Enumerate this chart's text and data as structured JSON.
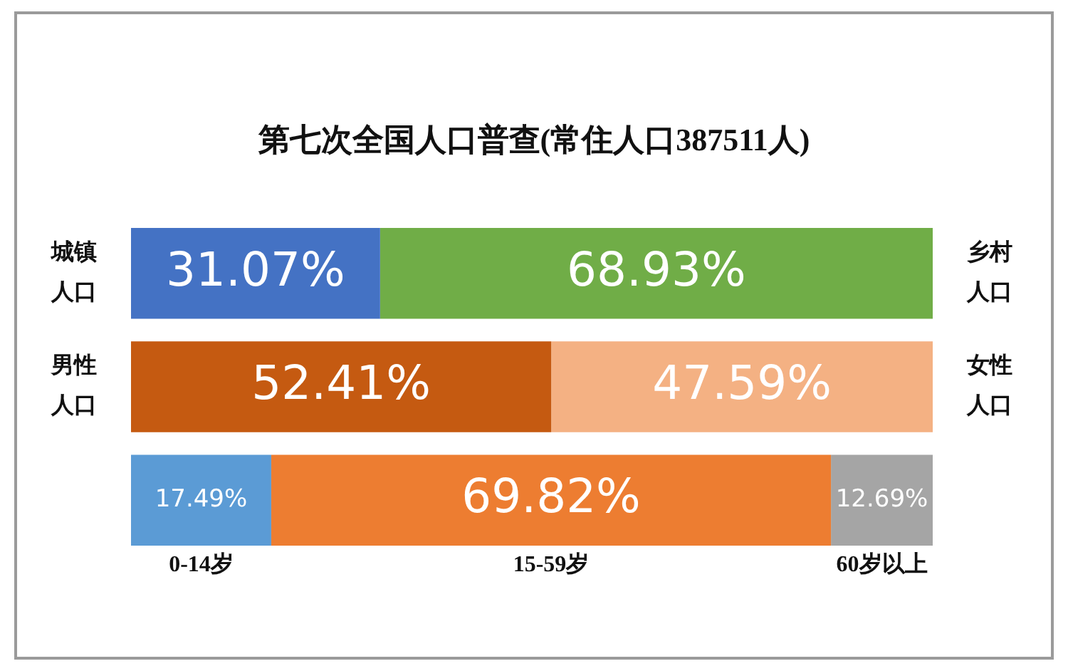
{
  "chart_data": {
    "type": "bar",
    "orientation": "horizontal",
    "stacked": true,
    "title": "第七次全国人口普查(常住人口387511人)",
    "categories": [
      null,
      null,
      null
    ],
    "series": [
      {
        "colors": [
          "#4472c4",
          "#c55a11",
          "#5b9bd5"
        ],
        "values": [
          31.07,
          52.41,
          17.49
        ],
        "value_labels": [
          "31.07%",
          "52.41%",
          "17.49%"
        ]
      },
      {
        "colors": [
          "#70ad47",
          "#f4b183",
          "#ed7d31"
        ],
        "values": [
          68.93,
          47.59,
          69.82
        ],
        "value_labels": [
          "68.93%",
          "47.59%",
          "69.82%"
        ]
      },
      {
        "colors": [
          null,
          null,
          "#a5a5a5"
        ],
        "values": [
          null,
          null,
          12.69
        ],
        "value_labels": [
          null,
          null,
          "12.69%"
        ]
      }
    ],
    "annotations": [
      "城镇人口",
      "乡村人口",
      "男性人口",
      "女性人口",
      "0-14岁",
      "15-59岁",
      "60岁以上"
    ],
    "legend": false
  }
}
